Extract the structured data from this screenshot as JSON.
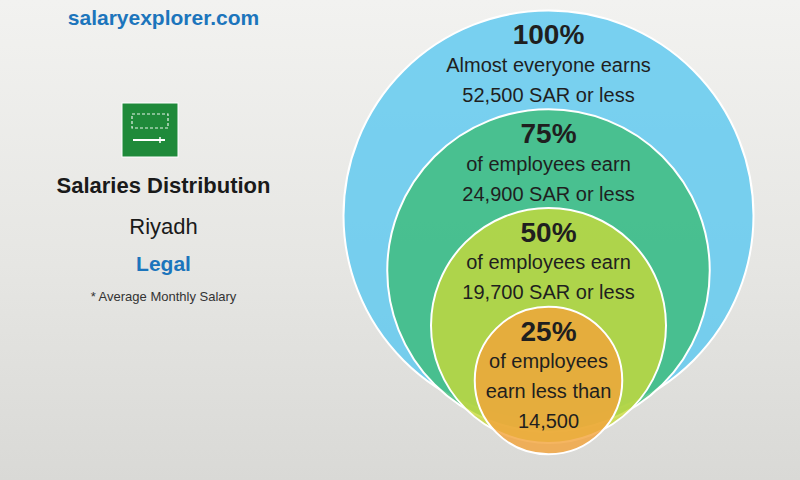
{
  "chart_data": {
    "type": "nested_circles",
    "source": "salaryexplorer.com",
    "title": "Salaries Distribution",
    "subtitle": "Riyadh",
    "category": "Legal",
    "note": "* Average Monthly Salary",
    "circles": [
      {
        "percent": 100,
        "percent_label": "100%",
        "lines": [
          "Almost everyone earns"
        ],
        "value": 52500,
        "value_label": "52,500 SAR or less",
        "color": "#5ac8f0"
      },
      {
        "percent": 75,
        "percent_label": "75%",
        "lines": [
          "of employees earn"
        ],
        "value": 24900,
        "value_label": "24,900 SAR or less",
        "color": "#3dbb78"
      },
      {
        "percent": 50,
        "percent_label": "50%",
        "lines": [
          "of employees earn"
        ],
        "value": 19700,
        "value_label": "19,700 SAR or less",
        "color": "#c8da3a"
      },
      {
        "percent": 25,
        "percent_label": "25%",
        "lines": [
          "of employees",
          "earn less than"
        ],
        "value": 14500,
        "value_label": "14,500",
        "color": "#f2a33a"
      }
    ]
  }
}
